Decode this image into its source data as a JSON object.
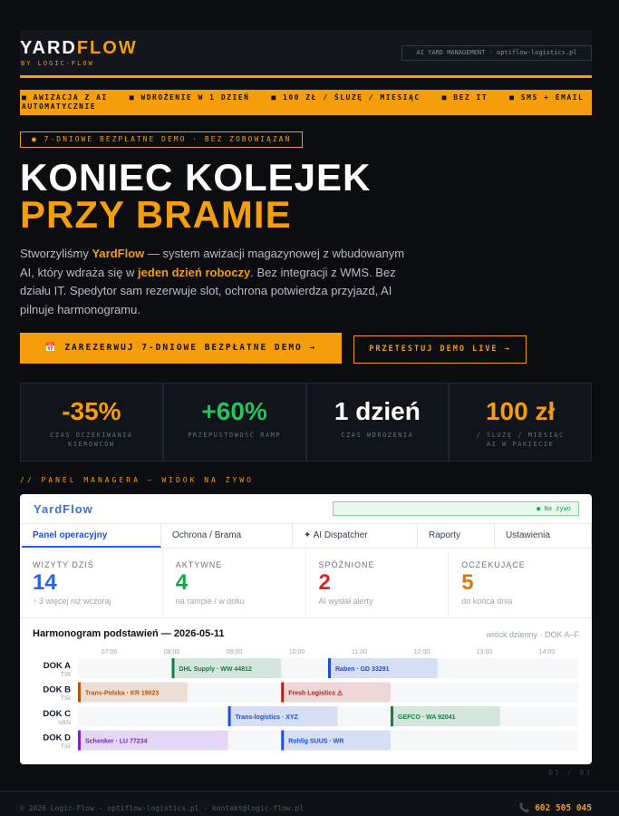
{
  "header": {
    "brand_a": "YARD",
    "brand_b": "FLOW",
    "tagline": "BY LOGIC-FLOW",
    "badge": "AI YARD MANAGEMENT · optiflow-logistics.pl"
  },
  "features": [
    "■ AWIZACJA Z AI",
    "■ WDROŻENIE W 1 DZIEŃ",
    "■ 100 ZŁ / ŚLUZĘ / MIESIĄC",
    "■ BEZ IT",
    "■ SMS + EMAIL AUTOMATYCZNIE"
  ],
  "hero": {
    "pill": "● 7-DNIOWE BEZPŁATNE DEMO · BEZ ZOBOWIĄZAŃ",
    "title_1": "KONIEC KOLEJEK",
    "title_2": "PRZY BRAMIE",
    "intro": [
      {
        "text": "Stworzyliśmy ",
        "highlight": false
      },
      {
        "text": "YardFlow",
        "highlight": true
      },
      {
        "text": " — system awizacji magazynowej z wbudowanym AI, który wdraża się w ",
        "highlight": false
      },
      {
        "text": "jeden dzień roboczy",
        "highlight": true
      },
      {
        "text": ". Bez integracji z WMS. Bez działu IT. Spedytor sam rezerwuje slot, ochrona potwierdza przyjazd, AI pilnuje harmonogramu.",
        "highlight": false
      }
    ]
  },
  "buttons": {
    "primary": "📅 ZAREZERWUJ 7-DNIOWE BEZPŁATNE DEMO →",
    "secondary": "PRZETESTUJ DEMO LIVE →"
  },
  "stats": [
    {
      "value": "-35%",
      "label": "CZAS OCZEKIWANIA KIEROWCÓW",
      "color": "#f59e0b"
    },
    {
      "value": "+60%",
      "label": "PRZEPUSTOWOŚĆ RAMP",
      "color": "#22c55e"
    },
    {
      "value": "1 dzień",
      "label": "CZAS WDROŻENIA",
      "color": "#ffffff"
    },
    {
      "value": "100 zł",
      "label": "/ ŚLUZĘ / MIESIĄC AI W PAKIECIE",
      "color": "#f59e0b"
    }
  ],
  "section_label": "// PANEL MANAGERA — WIDOK NA ŻYWO",
  "panel": {
    "brand": "YardFlow",
    "live": "● Na żywo",
    "tabs": [
      "Panel operacyjny",
      "Ochrona / Brama",
      "✦ AI Dispatcher",
      "Raporty",
      "Ustawienia"
    ],
    "kpis": [
      {
        "label": "WIZYTY DZIŚ",
        "value": 14,
        "note": "↑ 3 więcej niż wczoraj",
        "color": "#2563eb"
      },
      {
        "label": "AKTYWNE",
        "value": 4,
        "note": "na rampie / w doku",
        "color": "#16a34a"
      },
      {
        "label": "SPÓŹNIONE",
        "value": 2,
        "note": "AI wysłał alerty",
        "color": "#dc2626"
      },
      {
        "label": "OCZEKUJĄCE",
        "value": 5,
        "note": "do końca dnia",
        "color": "#d97706"
      }
    ]
  },
  "schedule": {
    "title": "Harmonogram podstawień — 2026-05-11",
    "subtitle": "widok dzienny · DOK A–F",
    "xlim": [
      6.5,
      14.5
    ],
    "hours": [
      {
        "value": 7,
        "label": "07:00"
      },
      {
        "value": 8,
        "label": "08:00"
      },
      {
        "value": 9,
        "label": "09:00"
      },
      {
        "value": 10,
        "label": "10:00"
      },
      {
        "value": 11,
        "label": "11:00"
      },
      {
        "value": 12,
        "label": "12:00"
      },
      {
        "value": 13,
        "label": "13:00"
      },
      {
        "value": 14,
        "label": "14:00"
      }
    ],
    "rows": [
      {
        "dock": "DOK A",
        "type": "TIR",
        "bookings": [
          {
            "label": "DHL Supply · WW 44812",
            "start": 8,
            "end": 9.75,
            "color": "#15803d"
          },
          {
            "label": "Raben · GD 33291",
            "start": 10.5,
            "end": 12.25,
            "color": "#1d4ed8"
          }
        ]
      },
      {
        "dock": "DOK B",
        "type": "TIR",
        "bookings": [
          {
            "label": "Trans-Polska · KR 19023",
            "start": 6.5,
            "end": 8.25,
            "color": "#b45309"
          },
          {
            "label": "Fresh Logistics ⚠",
            "start": 9.75,
            "end": 11.5,
            "color": "#b91c1c"
          }
        ]
      },
      {
        "dock": "DOK C",
        "type": "VAN",
        "bookings": [
          {
            "label": "Trans-logistics · XYZ",
            "start": 8.9,
            "end": 10.65,
            "color": "#1d4ed8"
          },
          {
            "label": "GEFCO · WA 92041",
            "start": 11.5,
            "end": 13.25,
            "color": "#15803d"
          }
        ]
      },
      {
        "dock": "DOK D",
        "type": "TIR",
        "bookings": [
          {
            "label": "Schenker · LU 77234",
            "start": 6.5,
            "end": 8.9,
            "color": "#7e22ce"
          },
          {
            "label": "Rohlig SUUS · WR",
            "start": 9.75,
            "end": 11.5,
            "color": "#1d4ed8"
          }
        ]
      }
    ]
  },
  "footer": {
    "page": "01 / 03",
    "contact": "© 2026 Logic-Flow · optiflow-logistics.pl · kontakt@logic-flow.pl",
    "phone": "📞 602 505 045"
  }
}
